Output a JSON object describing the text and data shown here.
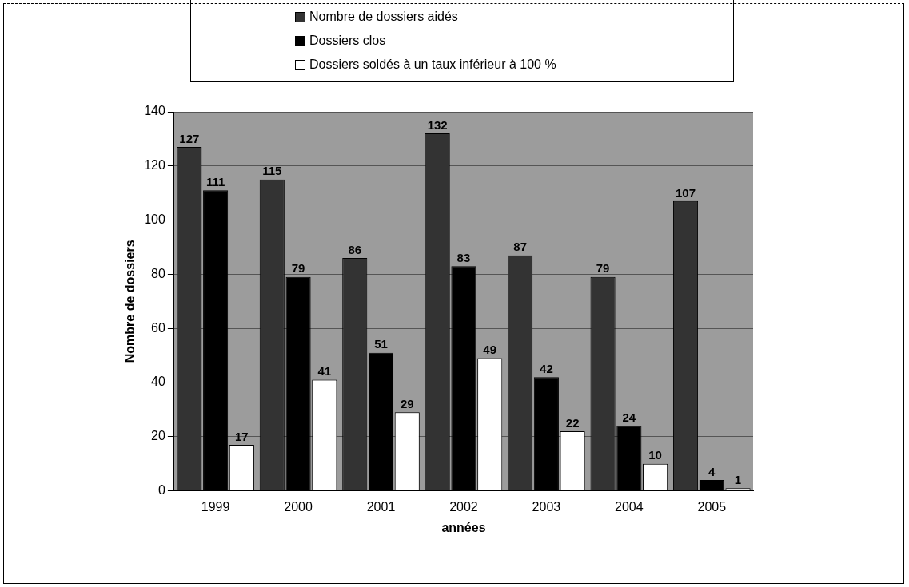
{
  "chart_data": {
    "type": "bar",
    "xlabel": "années",
    "ylabel": "Nombre de dossiers",
    "categories": [
      "1999",
      "2000",
      "2001",
      "2002",
      "2003",
      "2004",
      "2005"
    ],
    "series": [
      {
        "name": "Nombre de dossiers aidés",
        "color": "#333333",
        "values": [
          127,
          115,
          86,
          132,
          87,
          79,
          107
        ]
      },
      {
        "name": "Dossiers clos",
        "color": "#000000",
        "values": [
          111,
          79,
          51,
          83,
          42,
          24,
          4
        ]
      },
      {
        "name": "Dossiers soldés à un taux inférieur à 100 %",
        "color": "#ffffff",
        "values": [
          17,
          41,
          29,
          49,
          22,
          10,
          1
        ]
      }
    ],
    "ylim": [
      0,
      140
    ],
    "yticks": [
      0,
      20,
      40,
      60,
      80,
      100,
      120,
      140
    ],
    "grid": "y",
    "legend": "top",
    "data_labels": true
  }
}
